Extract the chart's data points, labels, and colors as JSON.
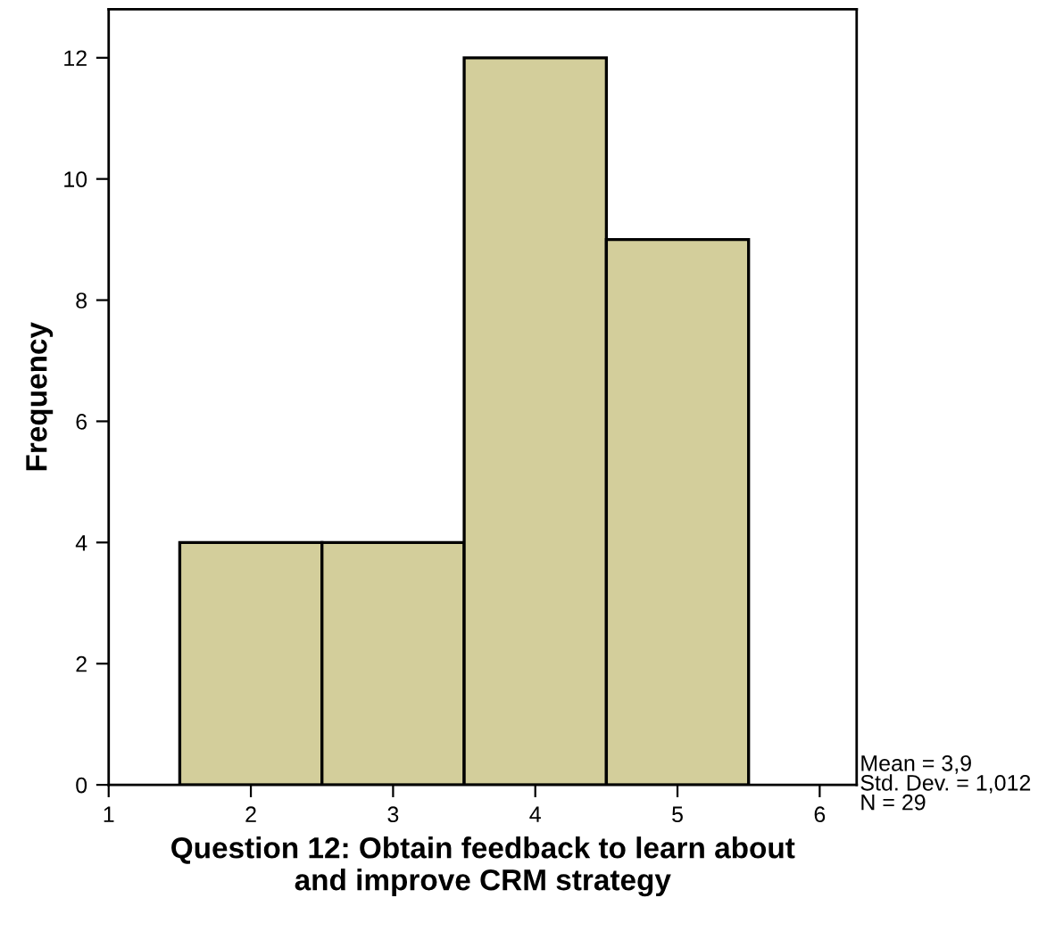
{
  "chart_data": {
    "type": "histogram",
    "xlabel": "Question 12: Obtain feedback to learn about\nand improve CRM strategy",
    "ylabel": "Frequency",
    "bins": [
      1.5,
      2.5,
      3.5,
      4.5,
      5.5
    ],
    "values": [
      4,
      4,
      12,
      9
    ],
    "color": "#d3ce9b",
    "xlim": [
      1,
      6.26
    ],
    "xticks": [
      1,
      2,
      3,
      4,
      5,
      6
    ],
    "ylim": [
      0,
      12.8
    ],
    "yticks": [
      0,
      2,
      4,
      6,
      8,
      10,
      12
    ],
    "grid": false,
    "legend": false,
    "annotations": [
      "Mean = 3,9",
      "Std. Dev. = 1,012",
      "N = 29"
    ]
  }
}
